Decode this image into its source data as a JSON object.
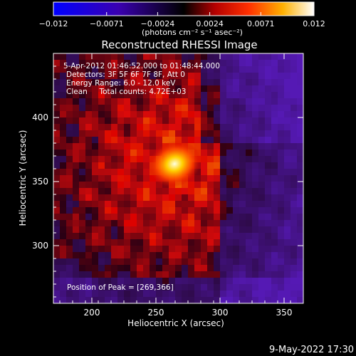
{
  "chart_data": {
    "type": "heatmap",
    "title": "Reconstructed RHESSI Image",
    "xlabel": "Heliocentric X (arcsec)",
    "ylabel": "Heliocentric Y (arcsec)",
    "xlim": [
      170,
      365
    ],
    "ylim": [
      255,
      450
    ],
    "x_ticks": [
      200,
      250,
      300,
      350
    ],
    "y_ticks": [
      300,
      350,
      400
    ],
    "colorbar": {
      "range": [
        -0.012,
        0.012
      ],
      "ticks": [
        "-0.012",
        "-0.0071",
        "-0.0024",
        "0.0024",
        "0.0071",
        "0.012"
      ],
      "unit_label": "(photons cm⁻² s⁻¹ asec⁻²)",
      "colors": [
        "#0000ff",
        "#000000",
        "#ff0000",
        "#ffff00",
        "#ffffff"
      ]
    },
    "peak": [
      269,
      366
    ],
    "info_lines": [
      "5-Apr-2012 01:46:52.000 to 01:48:44.000",
      "Detectors: 3F 5F 6F 7F 8F, Att 0",
      "Energy Range: 6.0 - 12.0 keV",
      "Clean     Total counts: 4.72E+03"
    ],
    "peak_label": "Position of Peak = [269,366]"
  },
  "footer": {
    "timestamp": "9-May-2022 17:30"
  }
}
